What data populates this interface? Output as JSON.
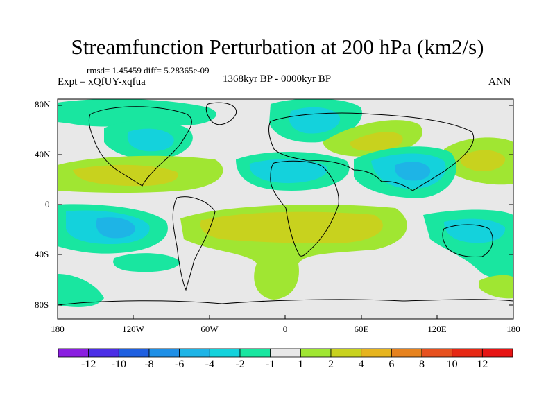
{
  "title": "Streamfunction Perturbation at 200 hPa (km2/s)",
  "stats": "rmsd= 1.45459 diff= 5.28365e-09",
  "experiment": "Expt = xQfUY-xqfua",
  "period": "1368kyr BP - 0000kyr BP",
  "season": "ANN",
  "lat_labels": [
    "80N",
    "40N",
    "0",
    "40S",
    "80S"
  ],
  "lon_labels": [
    "180",
    "120W",
    "60W",
    "0",
    "60E",
    "120E",
    "180"
  ],
  "colorbar": {
    "labels": [
      "-12",
      "-10",
      "-8",
      "-6",
      "-4",
      "-2",
      "-1",
      "1",
      "2",
      "4",
      "6",
      "8",
      "10",
      "12"
    ],
    "colors": [
      "#8a1ee0",
      "#4b2ee6",
      "#1e5fe0",
      "#1e8fe6",
      "#1eb4e6",
      "#14d2dc",
      "#19e6a0",
      "#e8e8e8",
      "#a0e632",
      "#c8d21e",
      "#e6b41e",
      "#e6821e",
      "#e6501e",
      "#e62814",
      "#e61414"
    ]
  },
  "colors": {
    "neutral": "#e8e8e8",
    "neg1": "#19e6a0",
    "neg2": "#14d2dc",
    "neg4": "#1eb4e6",
    "pos1": "#a0e632",
    "pos2": "#c8d21e"
  }
}
